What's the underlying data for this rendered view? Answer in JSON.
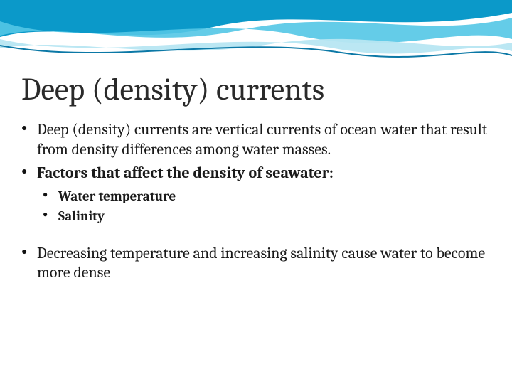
{
  "slide": {
    "title": "Deep (density) currents",
    "title_fontsize": 44,
    "title_color": "#2a2a2a",
    "body_fontsize_level1": 22,
    "body_fontsize_level2": 19,
    "body_color": "#1a1a1a",
    "background_color": "#ffffff",
    "bullets": [
      {
        "level": 1,
        "bold": false,
        "text": "Deep (density) currents are vertical currents of ocean water that result from density differences among water masses."
      },
      {
        "level": 1,
        "bold": true,
        "text": "Factors that affect the density of seawater:"
      },
      {
        "level": 2,
        "bold": true,
        "text": "Water temperature"
      },
      {
        "level": 2,
        "bold": true,
        "text": "Salinity"
      },
      {
        "level": 1,
        "bold": false,
        "spacer_before": true,
        "text": "Decreasing temperature and increasing salinity cause water to become more dense"
      }
    ]
  },
  "theme": {
    "wave_colors": {
      "top_band": "#0b99c9",
      "mid_band": "#53c6e6",
      "light_band": "#b7e6f2",
      "accent_line": "#0b78a6"
    },
    "font_family_title": "Cambria",
    "font_family_body": "Cambria"
  }
}
